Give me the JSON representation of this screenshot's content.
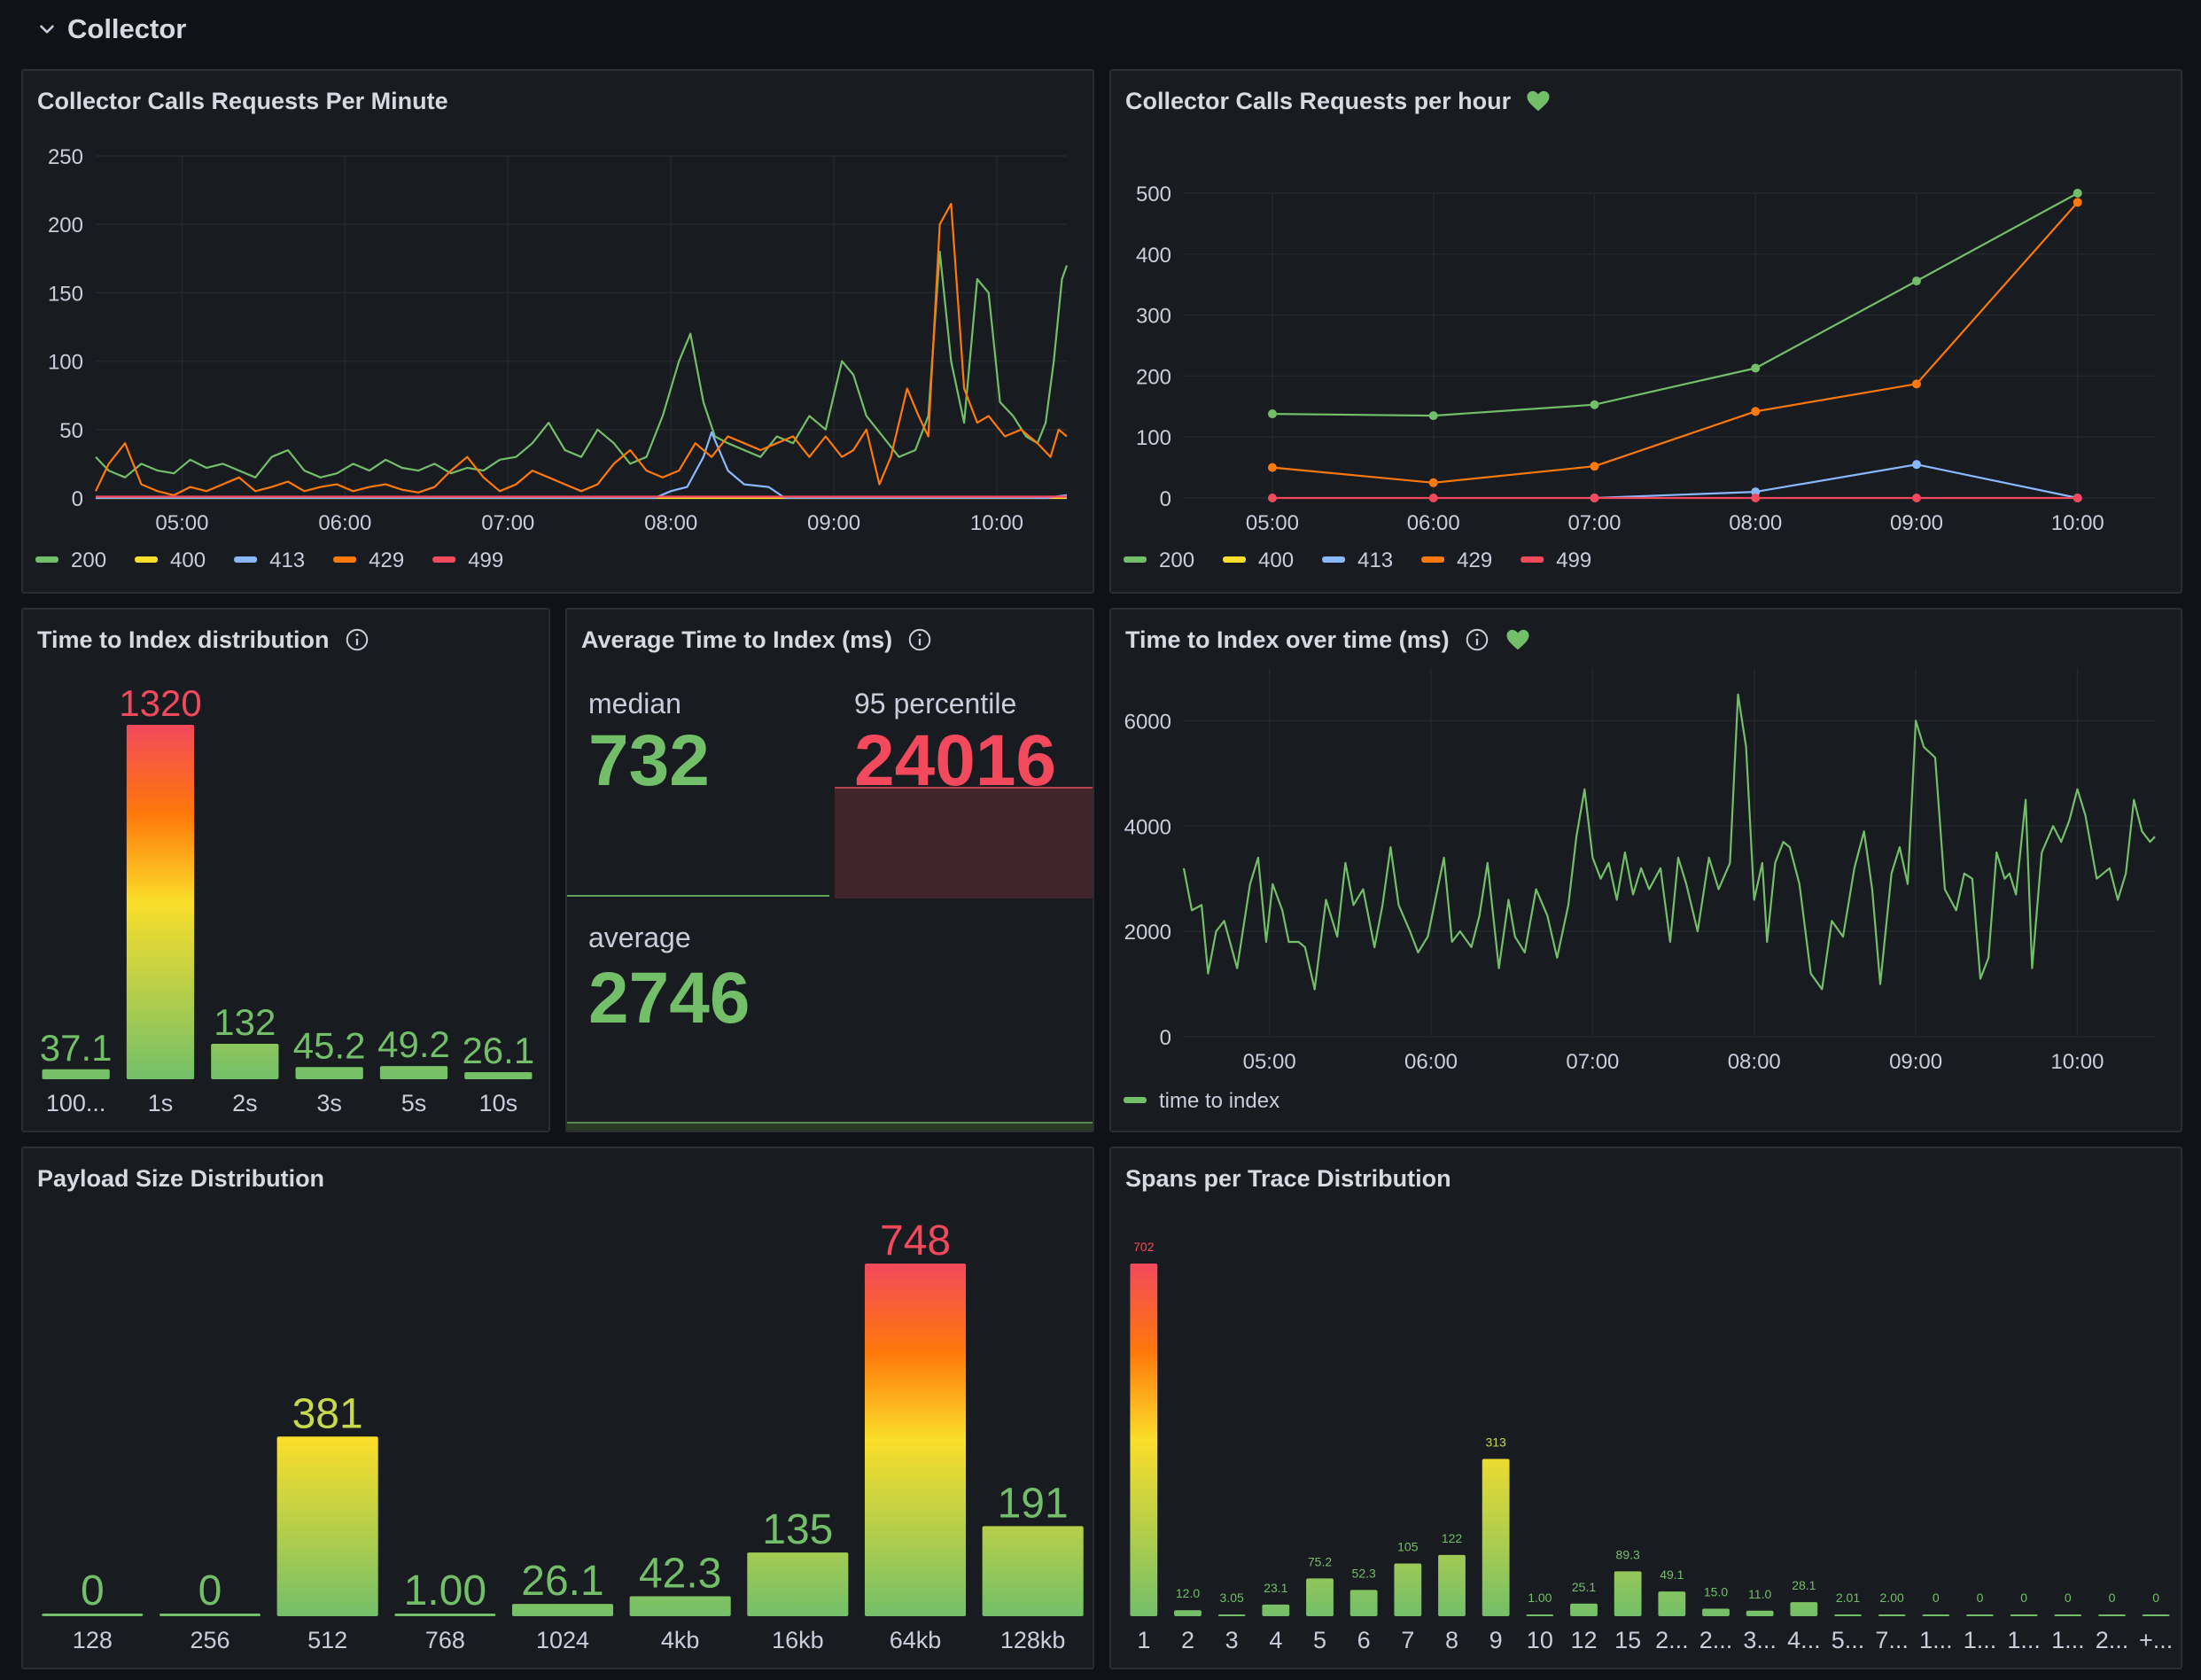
{
  "row": {
    "title": "Collector"
  },
  "colors": {
    "green": "#73bf69",
    "yellow": "#fade2a",
    "blue": "#8ab8ff",
    "orange": "#ff780a",
    "red": "#f2495c",
    "grid": "#24272c",
    "axis": "#ccccdc"
  },
  "panels": {
    "rpm": {
      "title": "Collector Calls Requests Per Minute",
      "chart_data": {
        "type": "line",
        "title": "Collector Calls Requests Per Minute",
        "ylim": [
          0,
          250
        ],
        "yticks": [
          0,
          50,
          100,
          150,
          200,
          250
        ],
        "xlim": [
          4.47,
          10.43
        ],
        "xticks": [
          {
            "v": 5,
            "label": "05:00"
          },
          {
            "v": 6,
            "label": "06:00"
          },
          {
            "v": 7,
            "label": "07:00"
          },
          {
            "v": 8,
            "label": "08:00"
          },
          {
            "v": 9,
            "label": "09:00"
          },
          {
            "v": 10,
            "label": "10:00"
          }
        ],
        "series": [
          {
            "name": "200",
            "color": "#73bf69",
            "x": [
              4.47,
              4.55,
              4.65,
              4.75,
              4.85,
              4.95,
              5.05,
              5.15,
              5.25,
              5.35,
              5.45,
              5.55,
              5.65,
              5.75,
              5.85,
              5.95,
              6.05,
              6.15,
              6.25,
              6.35,
              6.45,
              6.55,
              6.65,
              6.75,
              6.85,
              6.95,
              7.05,
              7.15,
              7.25,
              7.35,
              7.45,
              7.55,
              7.65,
              7.75,
              7.85,
              7.95,
              8.05,
              8.12,
              8.2,
              8.27,
              8.35,
              8.45,
              8.55,
              8.65,
              8.75,
              8.85,
              8.95,
              9.05,
              9.12,
              9.2,
              9.3,
              9.4,
              9.5,
              9.58,
              9.65,
              9.72,
              9.8,
              9.88,
              9.95,
              10.02,
              10.1,
              10.18,
              10.25,
              10.3,
              10.35,
              10.4,
              10.43
            ],
            "values": [
              30,
              20,
              15,
              25,
              20,
              18,
              28,
              22,
              25,
              20,
              15,
              30,
              35,
              20,
              15,
              18,
              25,
              20,
              28,
              22,
              20,
              25,
              18,
              22,
              20,
              28,
              30,
              40,
              55,
              35,
              30,
              50,
              40,
              25,
              30,
              60,
              100,
              120,
              70,
              45,
              40,
              35,
              30,
              45,
              40,
              60,
              50,
              100,
              90,
              60,
              45,
              30,
              35,
              60,
              180,
              100,
              55,
              160,
              150,
              70,
              60,
              45,
              40,
              55,
              100,
              160,
              170
            ]
          },
          {
            "name": "400",
            "color": "#fade2a",
            "x": [
              4.47,
              10.43
            ],
            "values": [
              0,
              0
            ]
          },
          {
            "name": "413",
            "color": "#8ab8ff",
            "x": [
              4.47,
              7.9,
              8.0,
              8.1,
              8.2,
              8.25,
              8.35,
              8.45,
              8.6,
              8.7,
              10.3,
              10.43
            ],
            "values": [
              0,
              0,
              5,
              8,
              30,
              48,
              20,
              10,
              8,
              0,
              0,
              2
            ]
          },
          {
            "name": "429",
            "color": "#ff780a",
            "x": [
              4.47,
              4.55,
              4.65,
              4.75,
              4.85,
              4.95,
              5.05,
              5.15,
              5.25,
              5.35,
              5.45,
              5.55,
              5.65,
              5.75,
              5.85,
              5.95,
              6.05,
              6.15,
              6.25,
              6.35,
              6.45,
              6.55,
              6.65,
              6.75,
              6.85,
              6.95,
              7.05,
              7.15,
              7.25,
              7.35,
              7.45,
              7.55,
              7.65,
              7.75,
              7.85,
              7.95,
              8.05,
              8.15,
              8.25,
              8.35,
              8.45,
              8.55,
              8.65,
              8.75,
              8.85,
              8.95,
              9.05,
              9.12,
              9.2,
              9.28,
              9.35,
              9.45,
              9.52,
              9.58,
              9.65,
              9.72,
              9.8,
              9.88,
              9.95,
              10.05,
              10.15,
              10.25,
              10.33,
              10.38,
              10.43
            ],
            "values": [
              5,
              25,
              40,
              10,
              5,
              2,
              8,
              5,
              10,
              15,
              5,
              8,
              12,
              5,
              8,
              10,
              5,
              8,
              10,
              6,
              4,
              8,
              20,
              30,
              15,
              5,
              10,
              20,
              15,
              10,
              5,
              10,
              25,
              35,
              20,
              15,
              20,
              40,
              30,
              45,
              40,
              35,
              40,
              45,
              30,
              45,
              30,
              35,
              50,
              10,
              30,
              80,
              60,
              45,
              200,
              215,
              80,
              55,
              60,
              45,
              50,
              40,
              30,
              50,
              45
            ]
          },
          {
            "name": "499",
            "color": "#f2495c",
            "x": [
              4.47,
              10.43
            ],
            "values": [
              1,
              1
            ]
          }
        ]
      }
    },
    "rph": {
      "title": "Collector Calls Requests per hour",
      "chart_data": {
        "type": "line",
        "title": "Collector Calls Requests per hour",
        "ylim": [
          0,
          500
        ],
        "yticks": [
          0,
          100,
          200,
          300,
          400,
          500
        ],
        "xlim": [
          4.45,
          10.48
        ],
        "xticks": [
          {
            "v": 5,
            "label": "05:00"
          },
          {
            "v": 6,
            "label": "06:00"
          },
          {
            "v": 7,
            "label": "07:00"
          },
          {
            "v": 8,
            "label": "08:00"
          },
          {
            "v": 9,
            "label": "09:00"
          },
          {
            "v": 10,
            "label": "10:00"
          }
        ],
        "points": true,
        "series": [
          {
            "name": "200",
            "color": "#73bf69",
            "x": [
              5,
              6,
              7,
              8,
              9,
              10
            ],
            "values": [
              138,
              135,
              153,
              213,
              356,
              500
            ]
          },
          {
            "name": "400",
            "color": "#fade2a",
            "x": [],
            "values": []
          },
          {
            "name": "413",
            "color": "#8ab8ff",
            "x": [
              7,
              8,
              9,
              10
            ],
            "values": [
              0,
              10,
              55,
              0
            ]
          },
          {
            "name": "429",
            "color": "#ff780a",
            "x": [
              5,
              6,
              7,
              8,
              9,
              10
            ],
            "values": [
              50,
              25,
              52,
              142,
              187,
              485
            ]
          },
          {
            "name": "499",
            "color": "#f2495c",
            "x": [
              5,
              6,
              7,
              8,
              9,
              10
            ],
            "values": [
              0,
              0,
              0,
              0,
              0,
              0
            ]
          }
        ]
      }
    },
    "ttid": {
      "title": "Time to Index distribution",
      "chart_data": {
        "type": "bar",
        "title": "Time to Index distribution",
        "categories": [
          "100...",
          "1s",
          "2s",
          "3s",
          "5s",
          "10s"
        ],
        "values": [
          37.1,
          1320,
          132,
          45.2,
          49.2,
          26.1
        ],
        "labels": [
          "37.1",
          "1320",
          "132",
          "45.2",
          "49.2",
          "26.1"
        ],
        "max": 1320
      }
    },
    "avg": {
      "title": "Average Time to Index (ms)",
      "median": {
        "label": "median",
        "value": "732"
      },
      "p95": {
        "label": "95 percentile",
        "value": "24016"
      },
      "average": {
        "label": "average",
        "value": "2746"
      }
    },
    "tot": {
      "title": "Time to Index over time (ms)",
      "chart_data": {
        "type": "line",
        "title": "Time to Index over time (ms)",
        "ylim": [
          0,
          7000
        ],
        "yticks": [
          0,
          2000,
          4000,
          6000
        ],
        "xlim": [
          4.47,
          10.48
        ],
        "xticks": [
          {
            "v": 5,
            "label": "05:00"
          },
          {
            "v": 6,
            "label": "06:00"
          },
          {
            "v": 7,
            "label": "07:00"
          },
          {
            "v": 8,
            "label": "08:00"
          },
          {
            "v": 9,
            "label": "09:00"
          },
          {
            "v": 10,
            "label": "10:00"
          }
        ],
        "series": [
          {
            "name": "time to index",
            "color": "#73bf69",
            "x": [
              4.47,
              4.52,
              4.58,
              4.62,
              4.67,
              4.72,
              4.8,
              4.88,
              4.93,
              4.98,
              5.02,
              5.08,
              5.12,
              5.18,
              5.22,
              5.28,
              5.35,
              5.42,
              5.47,
              5.52,
              5.58,
              5.65,
              5.7,
              5.75,
              5.8,
              5.87,
              5.92,
              5.98,
              6.02,
              6.08,
              6.13,
              6.18,
              6.25,
              6.3,
              6.35,
              6.42,
              6.48,
              6.52,
              6.58,
              6.65,
              6.72,
              6.78,
              6.85,
              6.9,
              6.95,
              7.0,
              7.05,
              7.1,
              7.15,
              7.2,
              7.25,
              7.3,
              7.35,
              7.42,
              7.48,
              7.53,
              7.58,
              7.65,
              7.72,
              7.78,
              7.85,
              7.9,
              7.95,
              8.0,
              8.05,
              8.08,
              8.13,
              8.18,
              8.22,
              8.28,
              8.35,
              8.42,
              8.48,
              8.55,
              8.62,
              8.68,
              8.73,
              8.78,
              8.85,
              8.9,
              8.95,
              9.0,
              9.05,
              9.12,
              9.18,
              9.25,
              9.3,
              9.35,
              9.4,
              9.45,
              9.5,
              9.55,
              9.58,
              9.62,
              9.68,
              9.72,
              9.78,
              9.85,
              9.9,
              9.95,
              10.0,
              10.05,
              10.12,
              10.2,
              10.25,
              10.3,
              10.35,
              10.4,
              10.45,
              10.48
            ],
            "values": [
              3200,
              2400,
              2500,
              1200,
              2000,
              2200,
              1300,
              2900,
              3400,
              1800,
              2900,
              2400,
              1800,
              1800,
              1700,
              900,
              2600,
              1900,
              3300,
              2500,
              2800,
              1700,
              2500,
              3600,
              2500,
              2000,
              1600,
              1900,
              2500,
              3400,
              1800,
              2000,
              1700,
              2300,
              3300,
              1300,
              2600,
              1900,
              1600,
              2800,
              2300,
              1500,
              2500,
              3800,
              4700,
              3400,
              3000,
              3300,
              2600,
              3500,
              2700,
              3200,
              2800,
              3200,
              1800,
              3400,
              2900,
              2000,
              3400,
              2800,
              3300,
              6500,
              5500,
              2600,
              3300,
              1800,
              3300,
              3700,
              3600,
              2900,
              1200,
              900,
              2200,
              1900,
              3200,
              3900,
              2800,
              1000,
              3100,
              3600,
              2900,
              6000,
              5500,
              5300,
              2800,
              2400,
              3100,
              3000,
              1100,
              1500,
              3500,
              3000,
              3100,
              2700,
              4500,
              1300,
              3500,
              4000,
              3700,
              4100,
              4700,
              4200,
              3000,
              3200,
              2600,
              3100,
              4500,
              3900,
              3700,
              3800
            ]
          }
        ]
      }
    },
    "payload": {
      "title": "Payload Size Distribution",
      "chart_data": {
        "type": "bar",
        "title": "Payload Size Distribution",
        "categories": [
          "128",
          "256",
          "512",
          "768",
          "1024",
          "4kb",
          "16kb",
          "64kb",
          "128kb"
        ],
        "values": [
          0,
          0,
          381,
          1.0,
          26.1,
          42.3,
          135,
          748,
          191
        ],
        "labels": [
          "0",
          "0",
          "381",
          "1.00",
          "26.1",
          "42.3",
          "135",
          "748",
          "191"
        ],
        "max": 748
      }
    },
    "spans": {
      "title": "Spans per Trace Distribution",
      "chart_data": {
        "type": "bar",
        "title": "Spans per Trace Distribution",
        "categories": [
          "1",
          "2",
          "3",
          "4",
          "5",
          "6",
          "7",
          "8",
          "9",
          "10",
          "12",
          "15",
          "2...",
          "2...",
          "3...",
          "4...",
          "5...",
          "7...",
          "1...",
          "1...",
          "1...",
          "1...",
          "2...",
          "+..."
        ],
        "values": [
          702,
          12.0,
          3.05,
          23.1,
          75.2,
          52.3,
          105,
          122,
          313,
          1.0,
          25.1,
          89.3,
          49.1,
          15.0,
          11.0,
          28.1,
          2.01,
          2.0,
          0,
          0,
          0,
          0,
          0,
          0
        ],
        "labels": [
          "702",
          "12.0",
          "3.05",
          "23.1",
          "75.2",
          "52.3",
          "105",
          "122",
          "313",
          "1.00",
          "25.1",
          "89.3",
          "49.1",
          "15.0",
          "11.0",
          "28.1",
          "2.01",
          "2.00",
          "0",
          "0",
          "0",
          "0",
          "0",
          "0"
        ],
        "max": 702
      }
    }
  }
}
